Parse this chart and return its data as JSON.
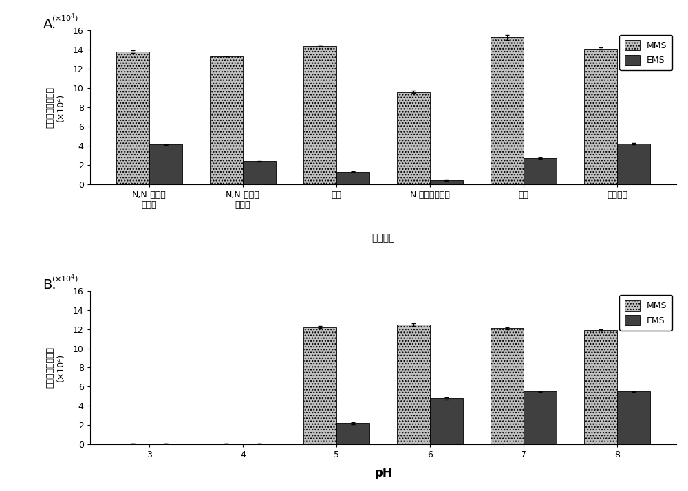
{
  "panel_A": {
    "categories": [
      "N,N-二甲基\n乙酰胺",
      "N,N-二甲基\n甲酰胺",
      "乙腊",
      "N-甲基吠和烷酰",
      "丙酰",
      "二甲亚砒"
    ],
    "MMS": [
      13.8,
      13.3,
      14.4,
      9.6,
      15.3,
      14.1
    ],
    "EMS": [
      4.1,
      2.4,
      1.3,
      0.4,
      2.7,
      4.2
    ],
    "MMS_err": [
      0.12,
      0.0,
      0.0,
      0.1,
      0.25,
      0.12
    ],
    "EMS_err": [
      0.05,
      0.05,
      0.05,
      0.03,
      0.05,
      0.05
    ],
    "xlabel": "有机溶剂",
    "ylim": [
      0,
      16
    ],
    "yticks": [
      0,
      2,
      4,
      6,
      8,
      10,
      12,
      14,
      16
    ]
  },
  "panel_B": {
    "categories": [
      "3",
      "4",
      "5",
      "6",
      "7",
      "8"
    ],
    "MMS": [
      0.08,
      0.08,
      12.2,
      12.5,
      12.1,
      11.9
    ],
    "EMS": [
      0.08,
      0.08,
      2.2,
      4.8,
      5.5,
      5.5
    ],
    "MMS_err": [
      0.0,
      0.0,
      0.1,
      0.15,
      0.1,
      0.1
    ],
    "EMS_err": [
      0.0,
      0.0,
      0.1,
      0.1,
      0.05,
      0.05
    ],
    "xlabel": "pH",
    "ylim": [
      0,
      16
    ],
    "yticks": [
      0,
      2,
      4,
      6,
      8,
      10,
      12,
      14,
      16
    ]
  },
  "ylabel_chars": [
    "衍",
    "生",
    "化",
    "产",
    "物",
    "峰",
    "面",
    "积"
  ],
  "ylabel_unit": "(×10⁴)",
  "MMS_color": "#c0c0c0",
  "EMS_color": "#404040",
  "MMS_hatch": "....",
  "EMS_hatch": "",
  "bar_width": 0.35,
  "legend_MMS": "MMS",
  "legend_EMS": "EMS",
  "panel_A_label": "A.",
  "panel_B_label": "B.",
  "fig_width": 10.0,
  "fig_height": 7.14
}
